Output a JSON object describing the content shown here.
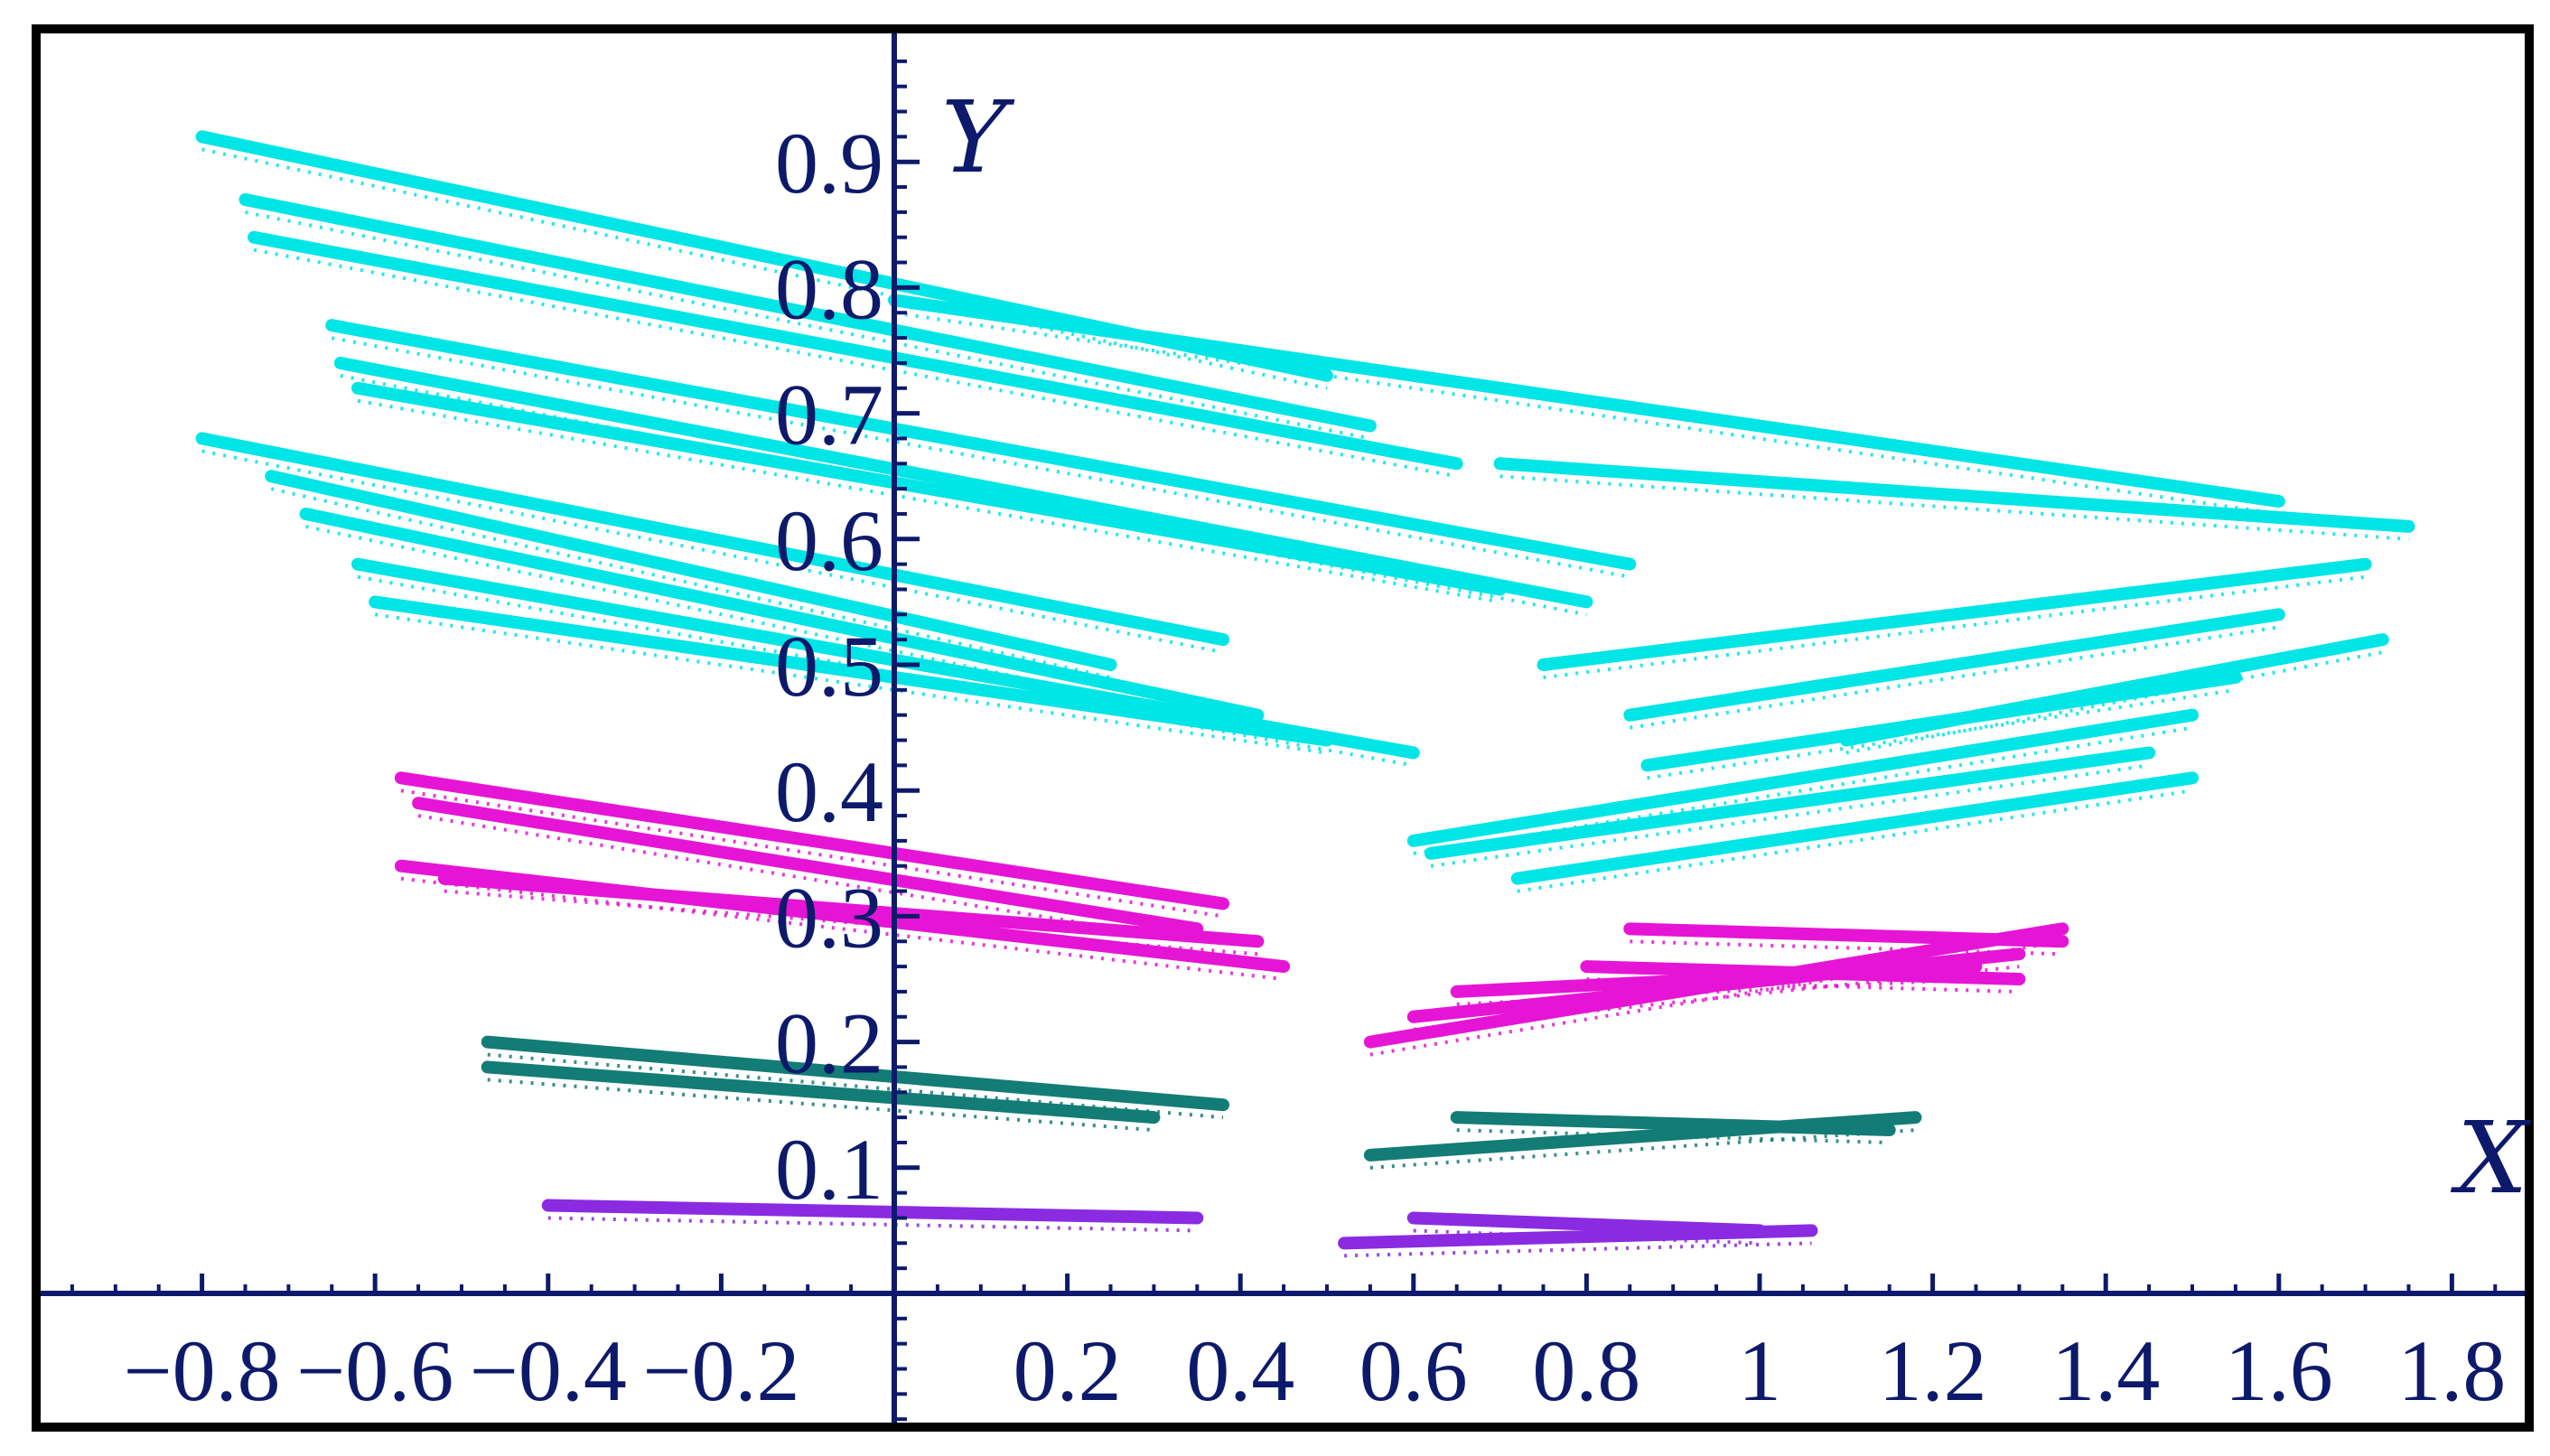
{
  "chart_data": {
    "type": "scatter",
    "title": "",
    "xlabel": "X",
    "ylabel": "Y",
    "xlim": [
      -1.0,
      1.95
    ],
    "ylim": [
      -0.1,
      0.99
    ],
    "grid": false,
    "axis_color": "#0d1a6b",
    "frame_color": "#000000",
    "x_ticks": [
      {
        "value": -0.8,
        "label": "−0.8"
      },
      {
        "value": -0.6,
        "label": "−0.6"
      },
      {
        "value": -0.4,
        "label": "−0.4"
      },
      {
        "value": -0.2,
        "label": "−0.2"
      },
      {
        "value": 0.2,
        "label": "0.2"
      },
      {
        "value": 0.4,
        "label": "0.4"
      },
      {
        "value": 0.6,
        "label": "0.6"
      },
      {
        "value": 0.8,
        "label": "0.8"
      },
      {
        "value": 1.0,
        "label": "1"
      },
      {
        "value": 1.2,
        "label": "1.2"
      },
      {
        "value": 1.4,
        "label": "1.4"
      },
      {
        "value": 1.6,
        "label": "1.6"
      },
      {
        "value": 1.8,
        "label": "1.8"
      }
    ],
    "y_ticks": [
      {
        "value": 0.1,
        "label": "0.1"
      },
      {
        "value": 0.2,
        "label": "0.2"
      },
      {
        "value": 0.3,
        "label": "0.3"
      },
      {
        "value": 0.4,
        "label": "0.4"
      },
      {
        "value": 0.5,
        "label": "0.5"
      },
      {
        "value": 0.6,
        "label": "0.6"
      },
      {
        "value": 0.7,
        "label": "0.7"
      },
      {
        "value": 0.8,
        "label": "0.8"
      },
      {
        "value": 0.9,
        "label": "0.9"
      }
    ],
    "series": [
      {
        "color": "#00e5e5",
        "values": [
          {
            "x1": -0.8,
            "y1": 0.92,
            "x2": 0.5,
            "y2": 0.73
          },
          {
            "x1": -0.75,
            "y1": 0.87,
            "x2": 0.55,
            "y2": 0.69
          },
          {
            "x1": -0.74,
            "y1": 0.84,
            "x2": 0.65,
            "y2": 0.66
          },
          {
            "x1": -0.65,
            "y1": 0.77,
            "x2": 0.85,
            "y2": 0.58
          },
          {
            "x1": -0.64,
            "y1": 0.74,
            "x2": 0.8,
            "y2": 0.55
          },
          {
            "x1": -0.62,
            "y1": 0.72,
            "x2": 0.7,
            "y2": 0.56
          },
          {
            "x1": -0.8,
            "y1": 0.68,
            "x2": 0.38,
            "y2": 0.52
          },
          {
            "x1": -0.72,
            "y1": 0.65,
            "x2": 0.25,
            "y2": 0.5
          },
          {
            "x1": -0.68,
            "y1": 0.62,
            "x2": 0.42,
            "y2": 0.46
          },
          {
            "x1": -0.62,
            "y1": 0.58,
            "x2": 0.6,
            "y2": 0.43
          },
          {
            "x1": -0.6,
            "y1": 0.55,
            "x2": 0.5,
            "y2": 0.44
          },
          {
            "x1": 0.0,
            "y1": 0.79,
            "x2": 1.6,
            "y2": 0.63
          },
          {
            "x1": 0.7,
            "y1": 0.66,
            "x2": 1.75,
            "y2": 0.61
          },
          {
            "x1": 0.75,
            "y1": 0.5,
            "x2": 1.7,
            "y2": 0.58
          },
          {
            "x1": 0.85,
            "y1": 0.46,
            "x2": 1.6,
            "y2": 0.54
          },
          {
            "x1": 0.87,
            "y1": 0.42,
            "x2": 1.55,
            "y2": 0.49
          },
          {
            "x1": 0.6,
            "y1": 0.36,
            "x2": 1.5,
            "y2": 0.46
          },
          {
            "x1": 0.62,
            "y1": 0.35,
            "x2": 1.45,
            "y2": 0.43
          },
          {
            "x1": 0.72,
            "y1": 0.33,
            "x2": 1.5,
            "y2": 0.41
          },
          {
            "x1": 1.1,
            "y1": 0.44,
            "x2": 1.72,
            "y2": 0.52
          }
        ]
      },
      {
        "color": "#e615d6",
        "values": [
          {
            "x1": -0.57,
            "y1": 0.41,
            "x2": 0.38,
            "y2": 0.31
          },
          {
            "x1": -0.55,
            "y1": 0.39,
            "x2": 0.35,
            "y2": 0.29
          },
          {
            "x1": -0.57,
            "y1": 0.34,
            "x2": 0.45,
            "y2": 0.26
          },
          {
            "x1": -0.52,
            "y1": 0.33,
            "x2": 0.42,
            "y2": 0.28
          },
          {
            "x1": 0.55,
            "y1": 0.2,
            "x2": 1.35,
            "y2": 0.29
          },
          {
            "x1": 0.6,
            "y1": 0.22,
            "x2": 1.3,
            "y2": 0.27
          },
          {
            "x1": 0.65,
            "y1": 0.24,
            "x2": 1.25,
            "y2": 0.26
          },
          {
            "x1": 0.8,
            "y1": 0.26,
            "x2": 1.3,
            "y2": 0.25
          },
          {
            "x1": 0.85,
            "y1": 0.29,
            "x2": 1.35,
            "y2": 0.28
          }
        ]
      },
      {
        "color": "#137c76",
        "values": [
          {
            "x1": -0.47,
            "y1": 0.2,
            "x2": 0.38,
            "y2": 0.15
          },
          {
            "x1": -0.47,
            "y1": 0.18,
            "x2": 0.3,
            "y2": 0.14
          },
          {
            "x1": 0.55,
            "y1": 0.11,
            "x2": 1.18,
            "y2": 0.14
          },
          {
            "x1": 0.65,
            "y1": 0.14,
            "x2": 1.15,
            "y2": 0.13
          }
        ]
      },
      {
        "color": "#8a2be2",
        "values": [
          {
            "x1": -0.4,
            "y1": 0.07,
            "x2": 0.35,
            "y2": 0.06
          },
          {
            "x1": 0.52,
            "y1": 0.04,
            "x2": 1.06,
            "y2": 0.05
          },
          {
            "x1": 0.6,
            "y1": 0.06,
            "x2": 1.0,
            "y2": 0.05
          }
        ]
      }
    ]
  }
}
